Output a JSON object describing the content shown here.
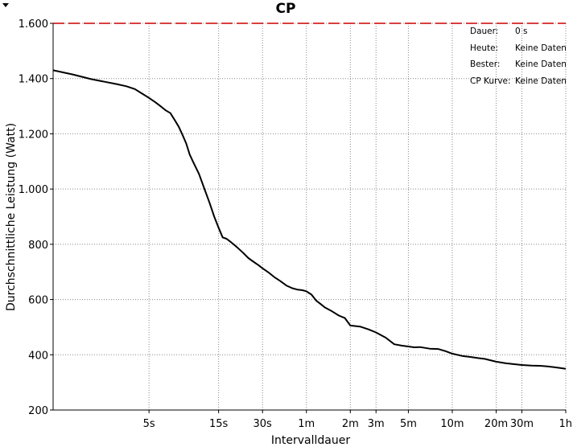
{
  "chart_data": {
    "type": "line",
    "title": "CP",
    "xlabel": "Intervalldauer",
    "ylabel": "Durchschnittliche Leistung (Watt)",
    "x_scale": "log",
    "x_unit": "seconds",
    "xlim": [
      1.1,
      3600
    ],
    "ylim": [
      200,
      1600
    ],
    "grid": true,
    "y_ticks": [
      {
        "value": 200,
        "label": "200"
      },
      {
        "value": 400,
        "label": "400"
      },
      {
        "value": 600,
        "label": "600"
      },
      {
        "value": 800,
        "label": "800"
      },
      {
        "value": 1000,
        "label": "1.000"
      },
      {
        "value": 1200,
        "label": "1.200"
      },
      {
        "value": 1400,
        "label": "1.400"
      },
      {
        "value": 1600,
        "label": "1.600"
      }
    ],
    "x_ticks": [
      {
        "value": 5,
        "label": "5s"
      },
      {
        "value": 15,
        "label": "15s"
      },
      {
        "value": 30,
        "label": "30s"
      },
      {
        "value": 60,
        "label": "1m"
      },
      {
        "value": 120,
        "label": "2m"
      },
      {
        "value": 180,
        "label": "3m"
      },
      {
        "value": 300,
        "label": "5m"
      },
      {
        "value": 600,
        "label": "10m"
      },
      {
        "value": 1200,
        "label": "20m"
      },
      {
        "value": 1800,
        "label": "30m"
      },
      {
        "value": 3600,
        "label": "1h"
      }
    ],
    "reference_line": {
      "y": 1600,
      "color": "#cc0000",
      "style": "dashed"
    },
    "series": [
      {
        "color": "#000000",
        "x": [
          1.1,
          1.5,
          2,
          2.5,
          3,
          3.5,
          4,
          4.5,
          5,
          5.5,
          6,
          6.5,
          7,
          7.5,
          8,
          8.5,
          9,
          9.5,
          10,
          11,
          12,
          13,
          14,
          15,
          16,
          17,
          18,
          19,
          20,
          22,
          24,
          26,
          28,
          30,
          33,
          36,
          40,
          44,
          48,
          52,
          56,
          60,
          65,
          70,
          75,
          80,
          90,
          100,
          110,
          120,
          140,
          160,
          180,
          210,
          240,
          270,
          300,
          330,
          360,
          420,
          480,
          540,
          600,
          700,
          800,
          900,
          1000,
          1200,
          1400,
          1600,
          1800,
          2100,
          2400,
          2700,
          3000,
          3300,
          3600
        ],
        "y": [
          1430,
          1415,
          1398,
          1388,
          1380,
          1372,
          1362,
          1345,
          1330,
          1315,
          1300,
          1285,
          1275,
          1250,
          1225,
          1195,
          1165,
          1125,
          1100,
          1055,
          1000,
          950,
          900,
          860,
          825,
          820,
          810,
          800,
          790,
          770,
          750,
          737,
          725,
          713,
          698,
          682,
          666,
          650,
          641,
          636,
          634,
          630,
          618,
          596,
          584,
          572,
          557,
          542,
          533,
          506,
          502,
          492,
          481,
          462,
          438,
          433,
          430,
          427,
          428,
          422,
          421,
          413,
          404,
          396,
          392,
          388,
          385,
          375,
          369,
          366,
          363,
          361,
          360,
          358,
          355,
          352,
          349
        ]
      }
    ]
  },
  "legend": {
    "rows": [
      {
        "label": "Dauer:",
        "value": "0 s"
      },
      {
        "label": "Heute:",
        "value": "Keine Daten"
      },
      {
        "label": "Bester:",
        "value": "Keine Daten"
      },
      {
        "label": "CP Kurve:",
        "value": "Keine Daten"
      }
    ]
  }
}
